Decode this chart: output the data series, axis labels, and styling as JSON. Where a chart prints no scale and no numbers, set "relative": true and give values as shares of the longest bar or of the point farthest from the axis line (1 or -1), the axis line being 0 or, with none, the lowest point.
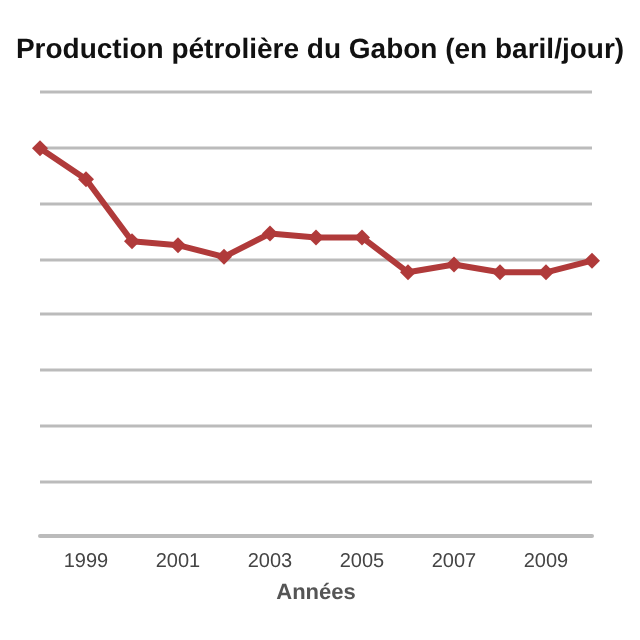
{
  "chart_data": {
    "type": "line",
    "title": "Production pétrolière du Gabon (en baril/jour)",
    "xlabel": "Années",
    "relative": true,
    "categories": [
      null,
      "1999",
      null,
      "2001",
      null,
      "2003",
      null,
      "2005",
      null,
      "2007",
      null,
      "2009",
      null
    ],
    "series": [
      {
        "color": "#b03a3a",
        "values": [
          1,
          0.92,
          0.76,
          0.75,
          0.72,
          0.78,
          0.77,
          0.77,
          0.68,
          0.7,
          0.68,
          0.68,
          0.71
        ]
      }
    ],
    "grid": true,
    "marker": "diamond",
    "line_style": "solid"
  }
}
